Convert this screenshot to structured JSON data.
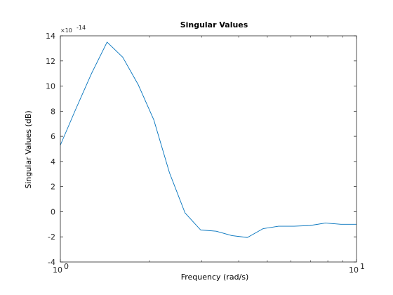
{
  "chart_data": {
    "type": "line",
    "title": "Singular Values",
    "xlabel": "Frequency (rad/s)",
    "ylabel": "Singular Values (dB)",
    "x_scale": "log",
    "xlim": [
      1,
      10
    ],
    "ylim": [
      -4,
      14
    ],
    "y_exponent_label": "×10",
    "y_exponent_power": "-14",
    "x_ticks": [
      {
        "value": 1,
        "label": "10",
        "power": "0"
      },
      {
        "value": 10,
        "label": "10",
        "power": "1"
      }
    ],
    "y_ticks": [
      {
        "value": -4,
        "label": "-4"
      },
      {
        "value": -2,
        "label": "-2"
      },
      {
        "value": 0,
        "label": "0"
      },
      {
        "value": 2,
        "label": "2"
      },
      {
        "value": 4,
        "label": "4"
      },
      {
        "value": 6,
        "label": "6"
      },
      {
        "value": 8,
        "label": "8"
      },
      {
        "value": 10,
        "label": "10"
      },
      {
        "value": 12,
        "label": "12"
      },
      {
        "value": 14,
        "label": "14"
      }
    ],
    "series": [
      {
        "color": "#0072bd",
        "x": [
          1.0,
          1.129,
          1.274,
          1.438,
          1.624,
          1.833,
          2.069,
          2.336,
          2.637,
          2.976,
          3.36,
          3.793,
          4.281,
          4.833,
          5.456,
          6.158,
          6.952,
          7.848,
          8.859,
          10.0
        ],
        "y": [
          5.3,
          8.2,
          11.0,
          13.5,
          12.3,
          10.1,
          7.3,
          3.1,
          -0.1,
          -1.45,
          -1.55,
          -1.9,
          -2.05,
          -1.35,
          -1.15,
          -1.15,
          -1.1,
          -0.9,
          -1.0,
          -1.0
        ]
      }
    ],
    "grid": false,
    "legend": "none"
  }
}
